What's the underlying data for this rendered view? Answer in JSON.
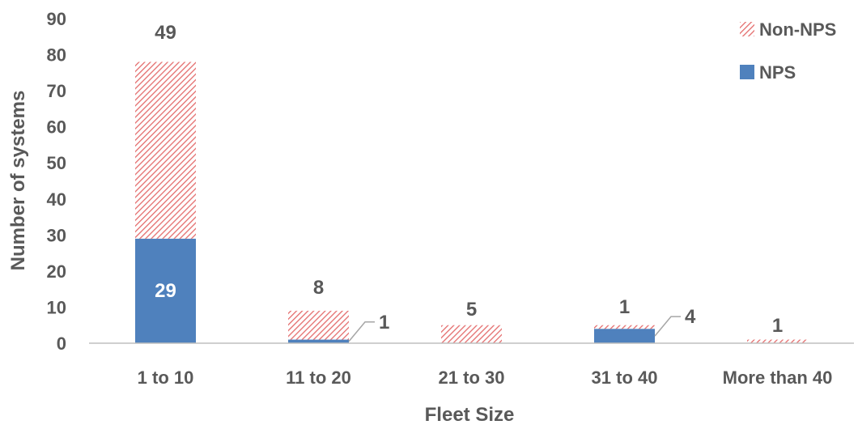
{
  "chart_data": {
    "type": "bar",
    "stacked": true,
    "categories": [
      "1 to 10",
      "11 to 20",
      "21 to 30",
      "31 to 40",
      "More than 40"
    ],
    "series": [
      {
        "name": "NPS",
        "values": [
          29,
          1,
          0,
          4,
          0
        ],
        "color": "#4f81bd",
        "pattern": "solid"
      },
      {
        "name": "Non-NPS",
        "values": [
          49,
          8,
          5,
          1,
          1
        ],
        "color": "#e46c6c",
        "pattern": "diagonal-hatch"
      }
    ],
    "data_labels": {
      "NPS": [
        "29",
        "1",
        "",
        "4",
        ""
      ],
      "Non-NPS": [
        "49",
        "8",
        "5",
        "1",
        "1"
      ]
    },
    "xlabel": "Fleet Size",
    "ylabel": "Number of systems",
    "ylim": [
      0,
      90
    ],
    "yticks": [
      0,
      10,
      20,
      30,
      40,
      50,
      60,
      70,
      80,
      90
    ],
    "legend": [
      "Non-NPS",
      "NPS"
    ],
    "legend_position": "top-right",
    "grid": false
  }
}
